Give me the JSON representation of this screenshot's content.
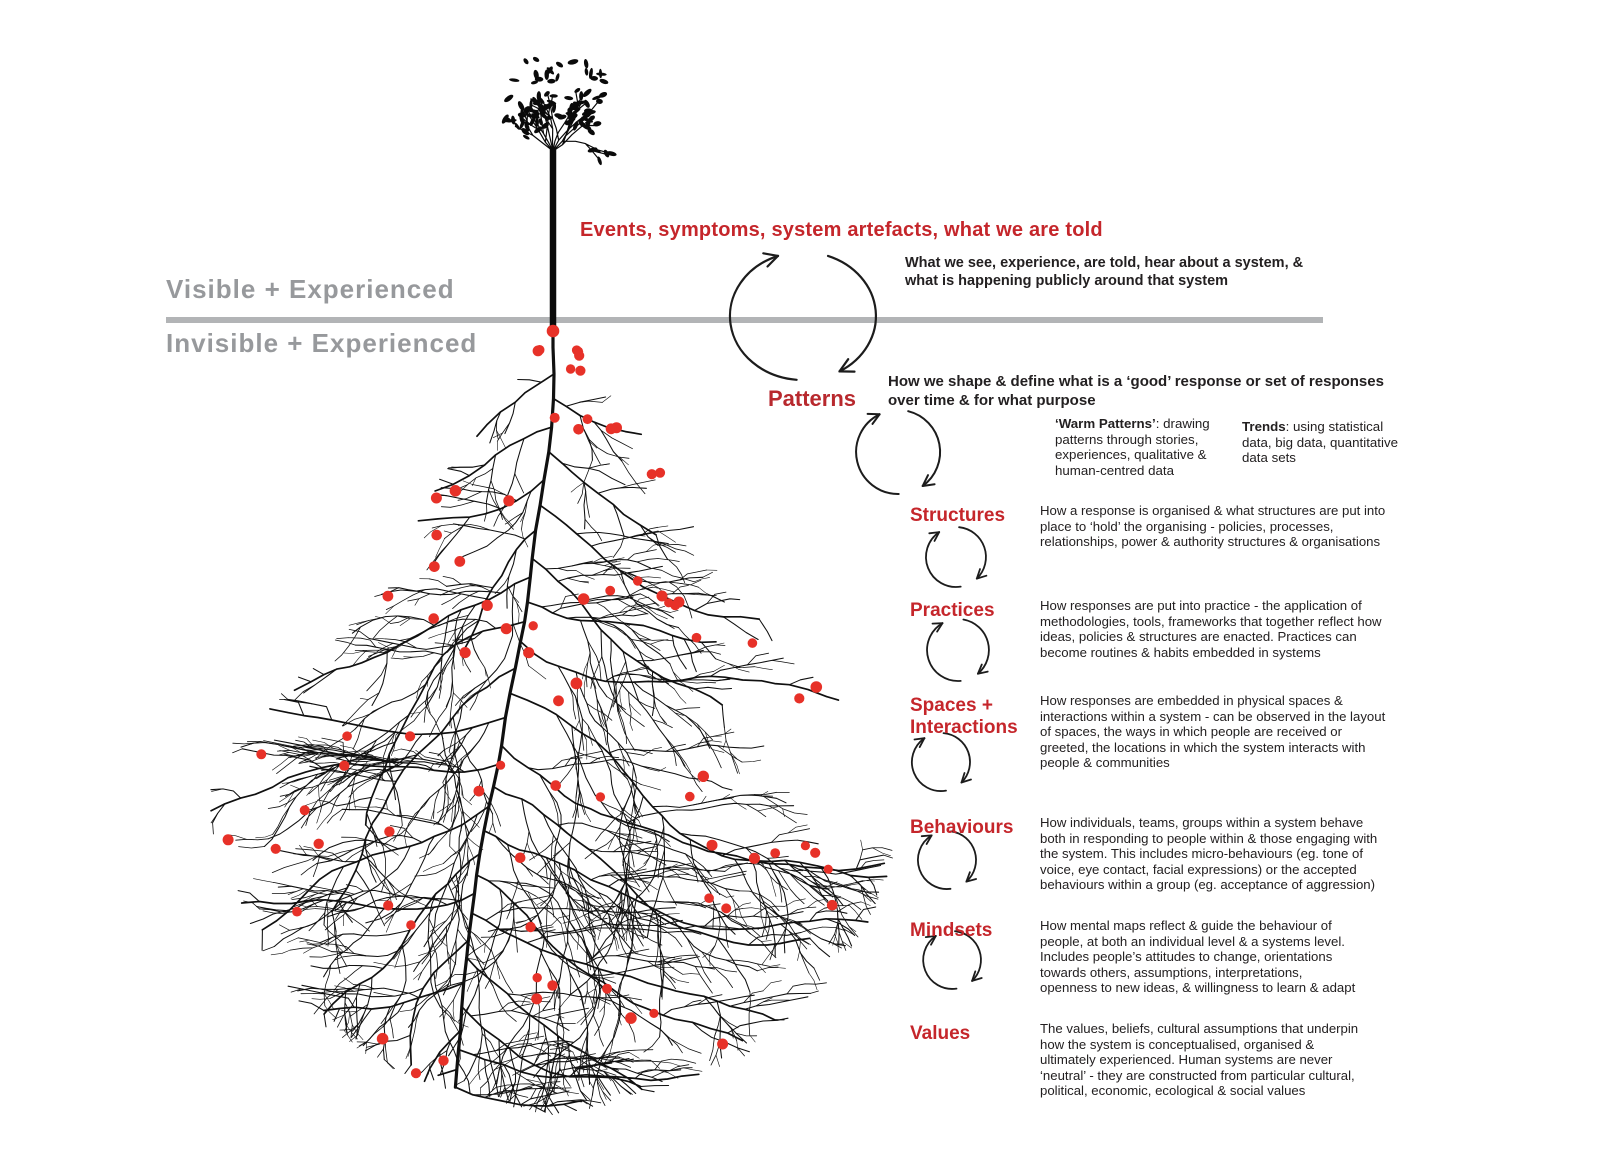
{
  "divider": {
    "visible_label": "Visible + Experienced",
    "invisible_label": "Invisible + Experienced"
  },
  "top": {
    "title": "Events, symptoms, system artefacts, what we are told",
    "subtitle": "What we see, experience, are told, hear about a system, & what is happening publicly around that system"
  },
  "patterns": {
    "label": "Patterns",
    "desc": "How we shape & define what is a ‘good’ response or set of responses over time & for what purpose",
    "warm_bold": "‘Warm Patterns’",
    "warm_rest": ": drawing patterns through stories, experiences, qualitative & human-centred data",
    "trends_bold": "Trends",
    "trends_rest": ": using statistical data, big data, quantitative data sets"
  },
  "sections": [
    {
      "label": "Structures",
      "desc": "How a response is organised & what structures are put into place to ‘hold’ the organising - policies, processes, relationships, power & authority structures & organisations"
    },
    {
      "label": "Practices",
      "desc": "How responses are put into practice - the application of methodologies, tools, frameworks that together reflect how ideas, policies & structures are enacted.  Practices can become routines & habits embedded in systems"
    },
    {
      "label": "Spaces + Interactions",
      "desc": "How responses are embedded in physical spaces & interactions within a system - can be observed in the layout of spaces, the ways in which people are received or greeted, the locations in which the system interacts with people & communities"
    },
    {
      "label": "Behaviours",
      "desc": "How individuals, teams, groups within a system behave both in responding to people within & those engaging with the system.  This includes micro-behaviours (eg. tone of voice, eye contact, facial expressions) or the accepted behaviours within a group (eg. acceptance of aggression)"
    },
    {
      "label": "Mindsets",
      "desc": "How mental maps reflect & guide the behaviour of people, at both an individual level & a systems level. Includes people’s attitudes to change, orientations towards others, assumptions, interpretations, openness to new ideas, & willingness to learn & adapt"
    },
    {
      "label": "Values",
      "desc": "The values, beliefs, cultural assumptions that underpin how the system is conceptualised, organised & ultimately experienced. Human systems are never ‘neutral’ - they are constructed from particular cultural, political, economic, ecological & social values"
    }
  ],
  "colors": {
    "red_heading": "#c5262b",
    "patterns_red": "#b8292e",
    "red_dot": "#e73128",
    "gray_label": "#97999c",
    "gray_line": "#b2b4b6",
    "text_black": "#232021",
    "branch_black": "#101010"
  }
}
